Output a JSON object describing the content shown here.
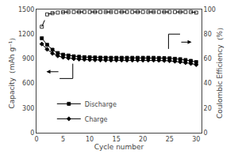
{
  "chart_data": {
    "type": "line",
    "xlabel": "Cycle number",
    "ylabel": "Capacity（mAh g⁻¹）",
    "y2label": "Coulombic Efficiency（%）",
    "x": [
      1,
      2,
      3,
      4,
      5,
      6,
      7,
      8,
      9,
      10,
      11,
      12,
      13,
      14,
      15,
      16,
      17,
      18,
      19,
      20,
      21,
      22,
      23,
      24,
      25,
      26,
      27,
      28,
      29,
      30
    ],
    "xlim": [
      0,
      31
    ],
    "xticks": [
      0,
      5,
      10,
      15,
      20,
      25,
      30
    ],
    "ylim": [
      0,
      1500
    ],
    "yticks": [
      0,
      300,
      600,
      900,
      1200,
      1500
    ],
    "y2lim": [
      0,
      100
    ],
    "y2ticks": [
      0,
      20,
      40,
      60,
      80,
      100
    ],
    "grid": false,
    "legend": "lower left",
    "series": [
      {
        "axis": "y2",
        "color": "black",
        "marker": "square-open",
        "line_style": "dashed",
        "values": [
          86,
          96,
          97,
          97.5,
          97.8,
          98,
          98,
          98,
          98,
          98,
          98,
          98,
          98,
          98,
          98,
          98,
          98,
          98,
          98,
          98,
          98,
          98,
          98,
          98,
          98,
          98,
          98,
          98,
          98,
          97.5
        ]
      },
      {
        "name": "Discharge",
        "color": "black",
        "marker": "square",
        "line_style": "solid",
        "values": [
          1150,
          1070,
          1010,
          970,
          950,
          940,
          930,
          925,
          920,
          918,
          916,
          914,
          913,
          912,
          912,
          912,
          912,
          912,
          912,
          912,
          913,
          912,
          910,
          908,
          906,
          900,
          895,
          885,
          875,
          860
        ]
      },
      {
        "name": "Charge",
        "color": "black",
        "marker": "diamond",
        "line_style": "solid",
        "values": [
          1080,
          1015,
          965,
          935,
          918,
          908,
          900,
          895,
          891,
          888,
          886,
          884,
          883,
          882,
          882,
          882,
          882,
          882,
          882,
          882,
          883,
          882,
          880,
          878,
          875,
          869,
          862,
          852,
          842,
          828
        ]
      }
    ]
  }
}
